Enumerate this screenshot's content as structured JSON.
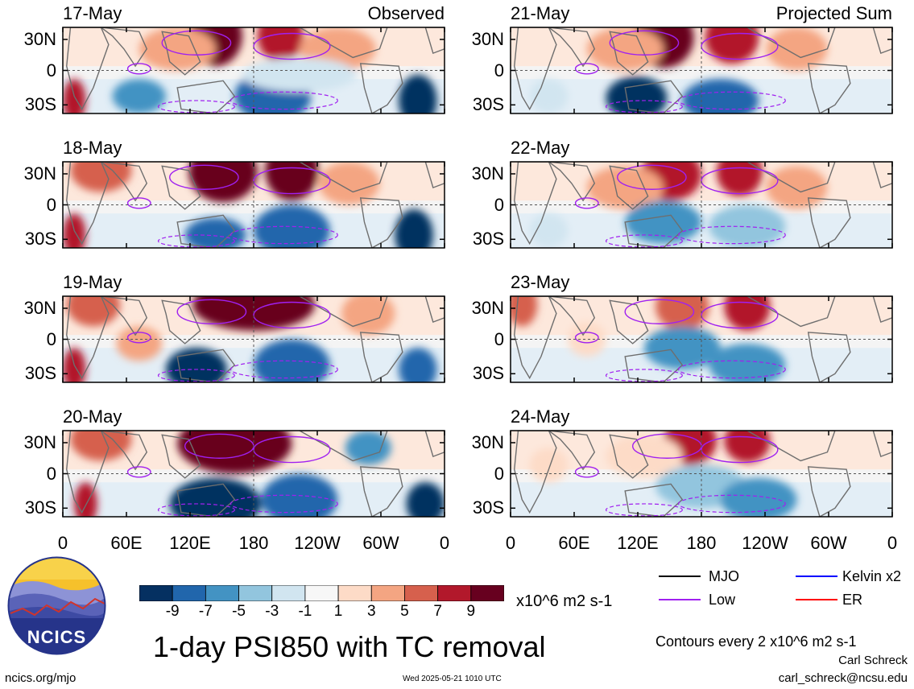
{
  "panels": [
    {
      "date": "17-May",
      "label": "Observed",
      "col": 0,
      "row": 0,
      "blobs": [
        [
          0.4,
          0.1,
          0.07,
          0.35,
          "#67001f"
        ],
        [
          0.57,
          0.1,
          0.06,
          0.3,
          "#b2182b"
        ],
        [
          0.3,
          0.25,
          0.1,
          0.25,
          "#f4a582"
        ],
        [
          0.72,
          0.25,
          0.1,
          0.25,
          "#f4a582"
        ],
        [
          0.03,
          0.85,
          0.03,
          0.25,
          "#b2182b"
        ],
        [
          0.2,
          0.8,
          0.07,
          0.2,
          "#4393c3"
        ],
        [
          0.55,
          0.8,
          0.1,
          0.3,
          "#2166ac"
        ],
        [
          0.93,
          0.85,
          0.05,
          0.3,
          "#053061"
        ],
        [
          0.62,
          0.55,
          0.15,
          0.2,
          "#d1e5f0"
        ]
      ]
    },
    {
      "date": "18-May",
      "label": "",
      "col": 0,
      "row": 1,
      "blobs": [
        [
          0.42,
          0.12,
          0.09,
          0.35,
          "#67001f"
        ],
        [
          0.6,
          0.1,
          0.07,
          0.35,
          "#67001f"
        ],
        [
          0.1,
          0.1,
          0.08,
          0.25,
          "#d6604d"
        ],
        [
          0.75,
          0.25,
          0.08,
          0.25,
          "#f4a582"
        ],
        [
          0.03,
          0.85,
          0.03,
          0.25,
          "#b2182b"
        ],
        [
          0.4,
          0.85,
          0.08,
          0.2,
          "#2166ac"
        ],
        [
          0.6,
          0.8,
          0.1,
          0.3,
          "#2166ac"
        ],
        [
          0.92,
          0.85,
          0.05,
          0.3,
          "#053061"
        ]
      ]
    },
    {
      "date": "19-May",
      "label": "",
      "col": 0,
      "row": 2,
      "blobs": [
        [
          0.5,
          0.1,
          0.16,
          0.3,
          "#67001f"
        ],
        [
          0.08,
          0.1,
          0.07,
          0.25,
          "#d6604d"
        ],
        [
          0.8,
          0.2,
          0.07,
          0.25,
          "#f4a582"
        ],
        [
          0.03,
          0.85,
          0.03,
          0.25,
          "#b2182b"
        ],
        [
          0.35,
          0.85,
          0.08,
          0.25,
          "#053061"
        ],
        [
          0.6,
          0.8,
          0.1,
          0.3,
          "#2166ac"
        ],
        [
          0.93,
          0.85,
          0.05,
          0.25,
          "#2166ac"
        ],
        [
          0.2,
          0.55,
          0.06,
          0.2,
          "#f4a582"
        ]
      ]
    },
    {
      "date": "20-May",
      "label": "",
      "col": 0,
      "row": 3,
      "blobs": [
        [
          0.45,
          0.15,
          0.15,
          0.35,
          "#67001f"
        ],
        [
          0.1,
          0.1,
          0.08,
          0.25,
          "#d6604d"
        ],
        [
          0.8,
          0.2,
          0.06,
          0.2,
          "#4393c3"
        ],
        [
          0.06,
          0.85,
          0.03,
          0.25,
          "#b2182b"
        ],
        [
          0.4,
          0.85,
          0.12,
          0.3,
          "#053061"
        ],
        [
          0.62,
          0.8,
          0.1,
          0.3,
          "#2166ac"
        ],
        [
          0.95,
          0.85,
          0.05,
          0.25,
          "#053061"
        ]
      ]
    },
    {
      "date": "21-May",
      "label": "Projected Sum",
      "col": 1,
      "row": 0,
      "blobs": [
        [
          0.4,
          0.12,
          0.08,
          0.35,
          "#67001f"
        ],
        [
          0.58,
          0.12,
          0.07,
          0.3,
          "#b2182b"
        ],
        [
          0.3,
          0.25,
          0.1,
          0.25,
          "#f4a582"
        ],
        [
          0.75,
          0.25,
          0.08,
          0.25,
          "#f4a582"
        ],
        [
          0.33,
          0.82,
          0.08,
          0.25,
          "#053061"
        ],
        [
          0.55,
          0.85,
          0.1,
          0.25,
          "#2166ac"
        ],
        [
          0.1,
          0.8,
          0.05,
          0.2,
          "#d1e5f0"
        ]
      ]
    },
    {
      "date": "22-May",
      "label": "",
      "col": 1,
      "row": 1,
      "blobs": [
        [
          0.42,
          0.15,
          0.08,
          0.3,
          "#b2182b"
        ],
        [
          0.6,
          0.12,
          0.06,
          0.28,
          "#b2182b"
        ],
        [
          0.3,
          0.3,
          0.1,
          0.25,
          "#f4a582"
        ],
        [
          0.75,
          0.3,
          0.08,
          0.25,
          "#f4a582"
        ],
        [
          0.4,
          0.7,
          0.1,
          0.25,
          "#4393c3"
        ],
        [
          0.62,
          0.75,
          0.1,
          0.25,
          "#92c5de"
        ],
        [
          0.1,
          0.8,
          0.05,
          0.2,
          "#d1e5f0"
        ]
      ]
    },
    {
      "date": "23-May",
      "label": "",
      "col": 1,
      "row": 2,
      "blobs": [
        [
          0.45,
          0.12,
          0.07,
          0.28,
          "#d6604d"
        ],
        [
          0.62,
          0.12,
          0.06,
          0.28,
          "#b2182b"
        ],
        [
          0.03,
          0.1,
          0.04,
          0.25,
          "#d6604d"
        ],
        [
          0.45,
          0.6,
          0.1,
          0.25,
          "#4393c3"
        ],
        [
          0.62,
          0.8,
          0.1,
          0.25,
          "#4393c3"
        ],
        [
          0.2,
          0.5,
          0.05,
          0.2,
          "#fddbc7"
        ]
      ]
    },
    {
      "date": "24-May",
      "label": "",
      "col": 1,
      "row": 3,
      "blobs": [
        [
          0.47,
          0.12,
          0.07,
          0.28,
          "#b2182b"
        ],
        [
          0.62,
          0.12,
          0.06,
          0.25,
          "#b2182b"
        ],
        [
          0.35,
          0.3,
          0.1,
          0.25,
          "#fddbc7"
        ],
        [
          0.5,
          0.65,
          0.12,
          0.25,
          "#92c5de"
        ],
        [
          0.65,
          0.8,
          0.1,
          0.25,
          "#4393c3"
        ],
        [
          0.1,
          0.4,
          0.05,
          0.2,
          "#fddbc7"
        ]
      ]
    }
  ],
  "axes": {
    "lat_labels": [
      "30N",
      "0",
      "30S"
    ],
    "lon_labels": [
      "0",
      "60E",
      "120E",
      "180",
      "120W",
      "60W",
      "0"
    ]
  },
  "colorbar": {
    "colors": [
      "#053061",
      "#2166ac",
      "#4393c3",
      "#92c5de",
      "#d1e5f0",
      "#f7f7f7",
      "#fddbc7",
      "#f4a582",
      "#d6604d",
      "#b2182b",
      "#67001f"
    ],
    "tick_labels": [
      "-9",
      "-7",
      "-5",
      "-3",
      "-1",
      "1",
      "3",
      "5",
      "7",
      "9"
    ],
    "units": "x10^6 m2 s-1"
  },
  "legend": {
    "items": [
      {
        "label": "MJO",
        "color": "#000000"
      },
      {
        "label": "Kelvin x2",
        "color": "#0000ff"
      },
      {
        "label": "Low",
        "color": "#a020f0"
      },
      {
        "label": "ER",
        "color": "#ff0000"
      }
    ],
    "contours_note": "Contours every 2 x10^6 m2 s-1"
  },
  "logo": {
    "text": "NCICS"
  },
  "title": "1-day PSI850 with TC removal",
  "footer": {
    "url": "ncics.org/mjo",
    "timestamp": "Wed 2025-05-21 1010 UTC",
    "author": "Carl Schreck",
    "email": "carl_schreck@ncsu.edu"
  }
}
